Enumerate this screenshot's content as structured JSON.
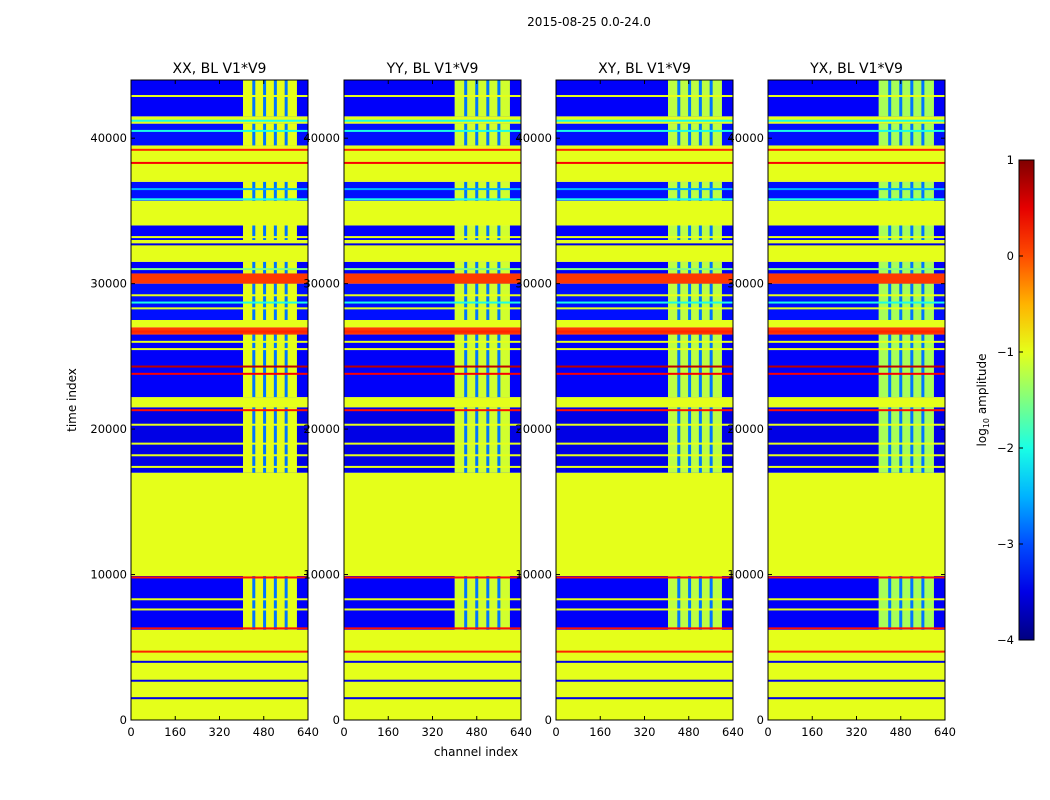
{
  "chart_data": {
    "type": "heatmap",
    "suptitle": "2015-08-25 0.0-24.0",
    "xlabel": "channel index",
    "ylabel": "time index",
    "xlim": [
      0,
      640
    ],
    "ylim": [
      0,
      44000
    ],
    "xticks": [
      0,
      160,
      320,
      480,
      640
    ],
    "yticks": [
      0,
      10000,
      20000,
      30000,
      40000
    ],
    "colorscale": "jet",
    "colorbar": {
      "label": "log10 amplitude",
      "label_main": "log",
      "label_sub": "10",
      "label_rest": " amplitude",
      "range": [
        -4,
        1
      ],
      "ticks": [
        1,
        0,
        -1,
        -2,
        -3,
        -4
      ]
    },
    "panels": [
      {
        "title": "XX, BL V1*V9",
        "band": [
          405,
          600
        ],
        "band_mid": -1.0
      },
      {
        "title": "YY, BL V1*V9",
        "band": [
          400,
          600
        ],
        "band_mid": -1.1
      },
      {
        "title": "XY, BL V1*V9",
        "band": [
          405,
          600
        ],
        "band_mid": -1.2
      },
      {
        "title": "YX, BL V1*V9",
        "band": [
          400,
          600
        ],
        "band_mid": -1.3
      }
    ],
    "rows": [
      {
        "t0": 0,
        "t1": 6200,
        "kind": "flag",
        "v": -1
      },
      {
        "t0": 6200,
        "t1": 9900,
        "kind": "data",
        "v": -3.4
      },
      {
        "t0": 9900,
        "t1": 17000,
        "kind": "flag",
        "v": -1
      },
      {
        "t0": 17000,
        "t1": 21500,
        "kind": "data",
        "v": -3.5
      },
      {
        "t0": 21500,
        "t1": 22200,
        "kind": "flag",
        "v": -1
      },
      {
        "t0": 22200,
        "t1": 26500,
        "kind": "data",
        "v": -3.4
      },
      {
        "t0": 26500,
        "t1": 27000,
        "kind": "flag",
        "v": 0.1
      },
      {
        "t0": 27000,
        "t1": 27500,
        "kind": "flag",
        "v": -1
      },
      {
        "t0": 27500,
        "t1": 30000,
        "kind": "data",
        "v": -3.3
      },
      {
        "t0": 30000,
        "t1": 30700,
        "kind": "flag",
        "v": 0.1
      },
      {
        "t0": 30700,
        "t1": 31500,
        "kind": "data",
        "v": -3.4
      },
      {
        "t0": 31500,
        "t1": 33000,
        "kind": "flag",
        "v": -1
      },
      {
        "t0": 33000,
        "t1": 34000,
        "kind": "data",
        "v": -3.4
      },
      {
        "t0": 34000,
        "t1": 35700,
        "kind": "flag",
        "v": -1
      },
      {
        "t0": 35700,
        "t1": 37000,
        "kind": "data",
        "v": -3.3
      },
      {
        "t0": 37000,
        "t1": 39500,
        "kind": "flag",
        "v": -1
      },
      {
        "t0": 39500,
        "t1": 41000,
        "kind": "data",
        "v": -3.3
      },
      {
        "t0": 41000,
        "t1": 41500,
        "kind": "flag",
        "v": -1
      },
      {
        "t0": 41500,
        "t1": 44000,
        "kind": "data",
        "v": -3.4
      }
    ],
    "lines": [
      {
        "t": 1500,
        "v": -3.5
      },
      {
        "t": 2700,
        "v": -3.5
      },
      {
        "t": 4000,
        "v": -3.5
      },
      {
        "t": 4700,
        "v": 0.2
      },
      {
        "t": 6300,
        "v": 0.3
      },
      {
        "t": 7600,
        "v": -1
      },
      {
        "t": 8300,
        "v": -1
      },
      {
        "t": 9800,
        "v": 0.3
      },
      {
        "t": 17400,
        "v": -1
      },
      {
        "t": 18200,
        "v": -1
      },
      {
        "t": 19000,
        "v": -1
      },
      {
        "t": 20300,
        "v": -1
      },
      {
        "t": 21300,
        "v": 0.3
      },
      {
        "t": 23800,
        "v": 0.4
      },
      {
        "t": 24300,
        "v": 0.7
      },
      {
        "t": 25500,
        "v": -1
      },
      {
        "t": 26000,
        "v": -1
      },
      {
        "t": 26700,
        "v": 0.2
      },
      {
        "t": 28300,
        "v": -1
      },
      {
        "t": 28700,
        "v": -2
      },
      {
        "t": 29200,
        "v": -1
      },
      {
        "t": 31000,
        "v": -1.5
      },
      {
        "t": 32700,
        "v": -3.5
      },
      {
        "t": 33200,
        "v": -1
      },
      {
        "t": 35800,
        "v": -2
      },
      {
        "t": 36500,
        "v": -2.5
      },
      {
        "t": 38300,
        "v": 0.4
      },
      {
        "t": 38800,
        "v": -1
      },
      {
        "t": 39200,
        "v": 0.2
      },
      {
        "t": 40500,
        "v": -2
      },
      {
        "t": 41200,
        "v": -2
      },
      {
        "t": 42900,
        "v": -1
      }
    ]
  }
}
